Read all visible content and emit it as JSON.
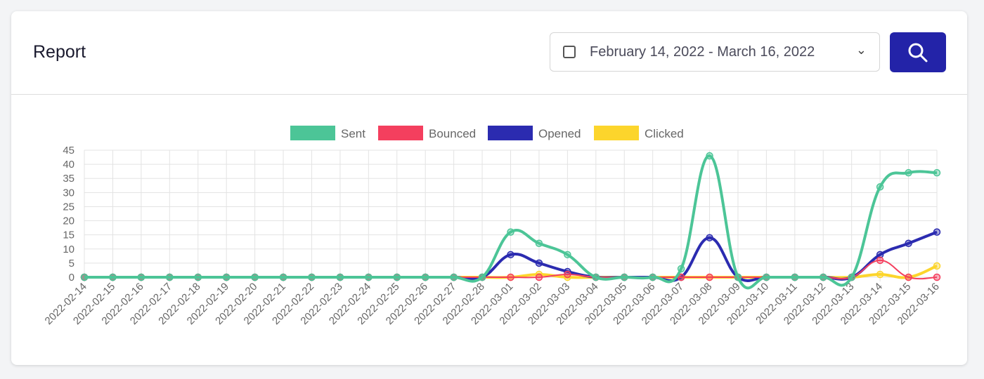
{
  "header": {
    "title": "Report",
    "date_range": "February 14, 2022 - March 16, 2022",
    "search_icon": "search-icon",
    "calendar_icon": "calendar-icon"
  },
  "chart_data": {
    "type": "line",
    "legend_position": "top",
    "grid": true,
    "ylim": [
      0,
      45
    ],
    "yticks": [
      0,
      5,
      10,
      15,
      20,
      25,
      30,
      35,
      40,
      45
    ],
    "categories": [
      "2022-02-14",
      "2022-02-15",
      "2022-02-16",
      "2022-02-17",
      "2022-02-18",
      "2022-02-19",
      "2022-02-20",
      "2022-02-21",
      "2022-02-22",
      "2022-02-23",
      "2022-02-24",
      "2022-02-25",
      "2022-02-26",
      "2022-02-27",
      "2022-02-28",
      "2022-03-01",
      "2022-03-02",
      "2022-03-03",
      "2022-03-04",
      "2022-03-05",
      "2022-03-06",
      "2022-03-07",
      "2022-03-08",
      "2022-03-09",
      "2022-03-10",
      "2022-03-11",
      "2022-03-12",
      "2022-03-13",
      "2022-03-14",
      "2022-03-15",
      "2022-03-16"
    ],
    "series": [
      {
        "name": "Sent",
        "color": "#4cc597",
        "values": [
          0,
          0,
          0,
          0,
          0,
          0,
          0,
          0,
          0,
          0,
          0,
          0,
          0,
          0,
          0,
          16,
          12,
          8,
          0,
          0,
          0,
          3,
          43,
          0,
          0,
          0,
          0,
          0,
          32,
          37,
          37
        ]
      },
      {
        "name": "Bounced",
        "color": "#f43f5e",
        "values": [
          0,
          0,
          0,
          0,
          0,
          0,
          0,
          0,
          0,
          0,
          0,
          0,
          0,
          0,
          0,
          0,
          0,
          1,
          0,
          0,
          0,
          0,
          0,
          0,
          0,
          0,
          0,
          0,
          6,
          0,
          0
        ]
      },
      {
        "name": "Opened",
        "color": "#2b2bb0",
        "values": [
          0,
          0,
          0,
          0,
          0,
          0,
          0,
          0,
          0,
          0,
          0,
          0,
          0,
          0,
          0,
          8,
          5,
          2,
          0,
          0,
          0,
          0,
          14,
          0,
          0,
          0,
          0,
          0,
          8,
          12,
          16
        ]
      },
      {
        "name": "Clicked",
        "color": "#fcd52c",
        "values": [
          0,
          0,
          0,
          0,
          0,
          0,
          0,
          0,
          0,
          0,
          0,
          0,
          0,
          0,
          0,
          0,
          1,
          0,
          0,
          0,
          0,
          0,
          0,
          0,
          0,
          0,
          0,
          0,
          1,
          0,
          4
        ]
      }
    ]
  }
}
